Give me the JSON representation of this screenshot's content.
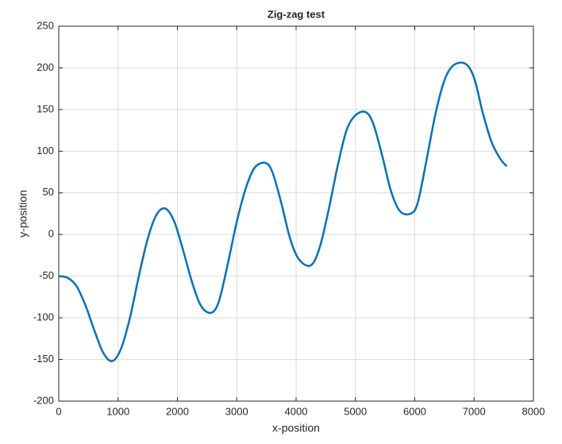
{
  "chart_data": {
    "type": "line",
    "title": "Zig-zag test",
    "x_label": "x-position",
    "y_label": "y-position",
    "x": [
      0,
      150,
      300,
      450,
      600,
      750,
      900,
      1050,
      1200,
      1350,
      1500,
      1650,
      1800,
      1950,
      2100,
      2250,
      2400,
      2570,
      2700,
      2850,
      3000,
      3150,
      3300,
      3480,
      3600,
      3750,
      3900,
      4050,
      4250,
      4400,
      4550,
      4700,
      4850,
      5000,
      5170,
      5300,
      5450,
      5600,
      5750,
      5930,
      6050,
      6200,
      6350,
      6500,
      6650,
      6850,
      7000,
      7150,
      7300,
      7450,
      7550
    ],
    "series": [
      {
        "color": "#0072bd",
        "values": [
          -50,
          -52,
          -62,
          -85,
          -115,
          -142,
          -152,
          -137,
          -100,
          -50,
          -5,
          24,
          31,
          15,
          -20,
          -58,
          -86,
          -94,
          -80,
          -35,
          15,
          55,
          80,
          86,
          75,
          38,
          -5,
          -30,
          -37,
          -15,
          30,
          82,
          125,
          143,
          147,
          133,
          95,
          52,
          28,
          25,
          38,
          90,
          145,
          185,
          203,
          205,
          188,
          145,
          110,
          90,
          82
        ]
      }
    ],
    "xlim": [
      0,
      8000
    ],
    "xticks": [
      0,
      1000,
      2000,
      3000,
      4000,
      5000,
      6000,
      7000,
      8000
    ],
    "ylim": [
      -200,
      250
    ],
    "yticks": [
      -200,
      -150,
      -100,
      -50,
      0,
      50,
      100,
      150,
      200,
      250
    ],
    "grid": true
  }
}
